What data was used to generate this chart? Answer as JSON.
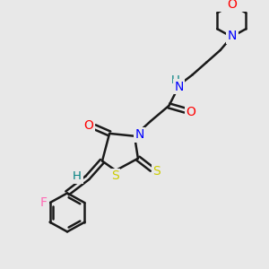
{
  "background_color": "#e8e8e8",
  "bond_color": "#1a1a1a",
  "colors": {
    "O": "#ff0000",
    "N": "#0000ff",
    "S": "#cccc00",
    "F": "#ff69b4",
    "H": "#008080",
    "NH": "#0000ff"
  },
  "figsize": [
    3.0,
    3.0
  ],
  "dpi": 100
}
